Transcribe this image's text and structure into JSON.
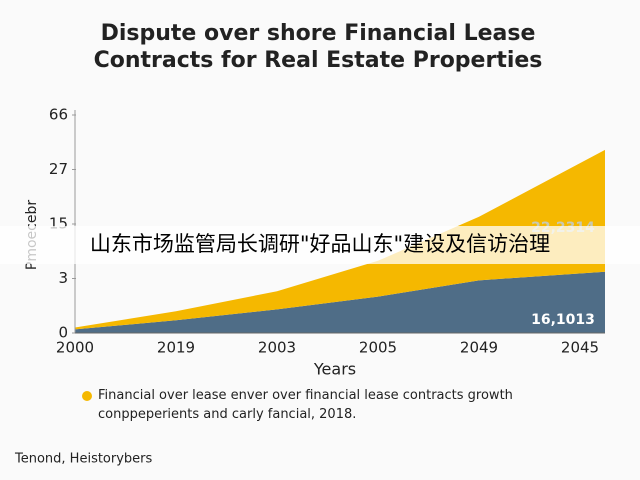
{
  "chart_data": {
    "type": "area",
    "title": [
      "Dispute over shore Financial Lease",
      "Contracts for Real Estate Properties"
    ],
    "y_label": "Pmoecebr",
    "x_label": "Years",
    "categories": [
      "2000",
      "2019",
      "2003",
      "2005",
      "2049",
      "2045"
    ],
    "series": [
      {
        "color": "#4f6d87",
        "values": [
          0.2,
          0.7,
          1.3,
          2,
          2.9,
          4.5
        ]
      },
      {
        "name": "Financial over lease enver over financial lease contracts growth conppeperients and carly fancial, 2018.",
        "color": "#f5b800",
        "values": [
          0.1,
          0.5,
          1,
          4.9,
          13.7,
          36.5
        ]
      }
    ],
    "ylim": [
      0,
      66
    ],
    "yticks": [
      0,
      3,
      15,
      27,
      66
    ],
    "annotations": [
      "16,1013",
      "22,2314"
    ],
    "source": "Tenond, Heistorybers",
    "banner": "山东市场监管局长调研\"好品山东\"建设及信访治理"
  }
}
